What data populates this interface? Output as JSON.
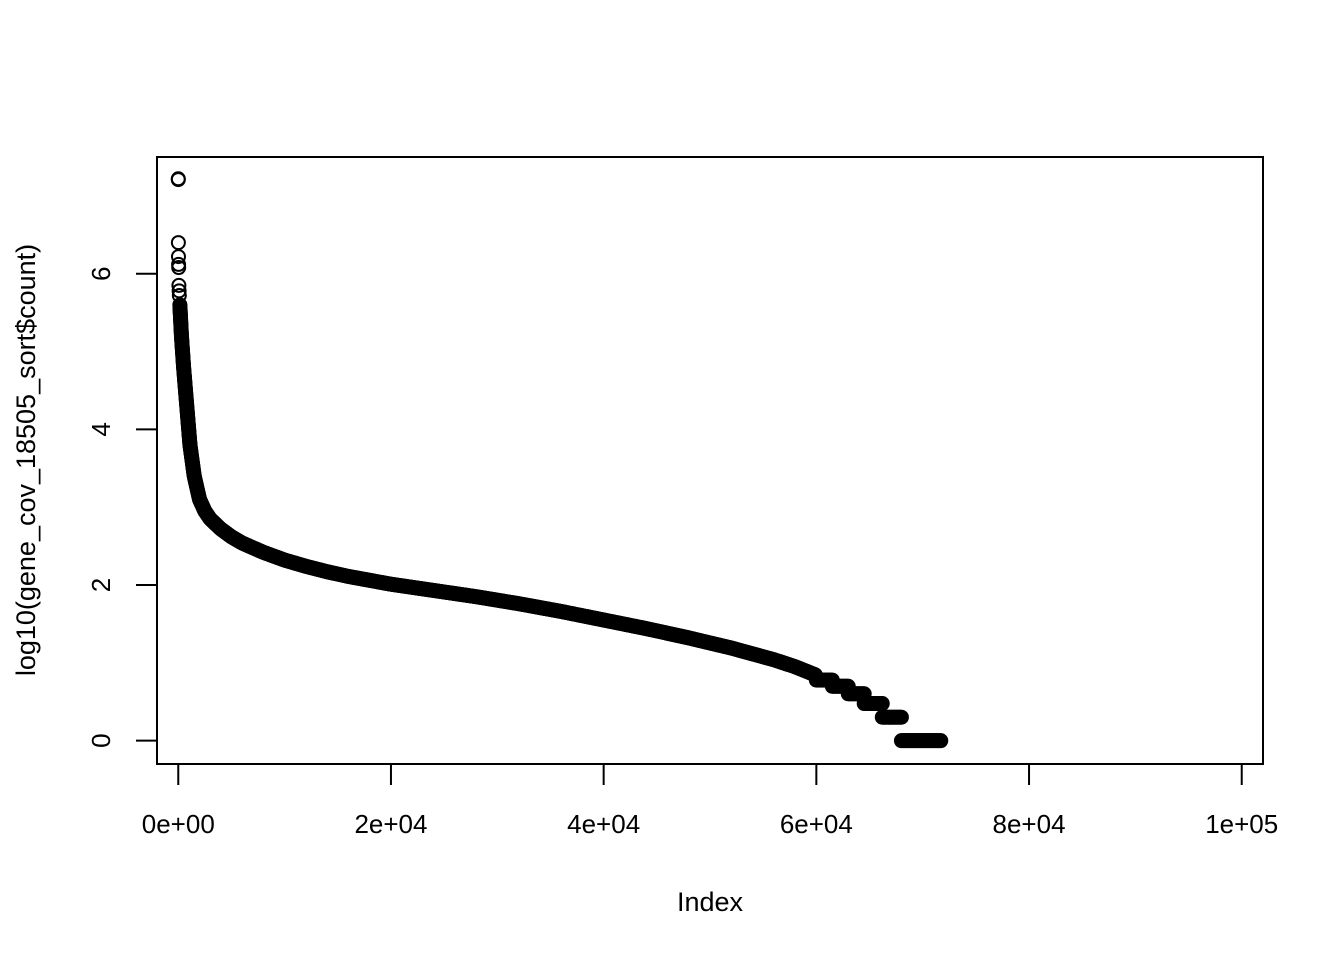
{
  "chart_data": {
    "type": "scatter",
    "title": "",
    "xlabel": "Index",
    "ylabel": "log10(gene_cov_18505_sort$count)",
    "xlim": [
      -2000,
      102000
    ],
    "ylim": [
      -0.3,
      7.5
    ],
    "x_ticks": [
      0,
      20000,
      40000,
      60000,
      80000,
      100000
    ],
    "x_tick_labels": [
      "0e+00",
      "2e+04",
      "4e+04",
      "6e+04",
      "8e+04",
      "1e+05"
    ],
    "y_ticks": [
      0,
      2,
      4,
      6
    ],
    "y_tick_labels": [
      "0",
      "2",
      "4",
      "6"
    ],
    "grid": false,
    "legend": "none",
    "marker": "open-circle",
    "color": "#000000",
    "n_points": 71800,
    "outliers": [
      {
        "x": 1,
        "y": 7.22
      },
      {
        "x": 2,
        "y": 7.21
      },
      {
        "x": 10,
        "y": 6.4
      },
      {
        "x": 20,
        "y": 6.22
      },
      {
        "x": 30,
        "y": 6.12
      },
      {
        "x": 40,
        "y": 6.08
      },
      {
        "x": 60,
        "y": 5.85
      },
      {
        "x": 80,
        "y": 5.78
      },
      {
        "x": 100,
        "y": 5.72
      }
    ],
    "curve": [
      {
        "x": 150,
        "y": 5.6
      },
      {
        "x": 300,
        "y": 5.2
      },
      {
        "x": 500,
        "y": 4.8
      },
      {
        "x": 800,
        "y": 4.3
      },
      {
        "x": 1100,
        "y": 3.8
      },
      {
        "x": 1500,
        "y": 3.4
      },
      {
        "x": 2000,
        "y": 3.1
      },
      {
        "x": 2500,
        "y": 2.95
      },
      {
        "x": 3000,
        "y": 2.85
      },
      {
        "x": 4000,
        "y": 2.72
      },
      {
        "x": 5000,
        "y": 2.62
      },
      {
        "x": 6000,
        "y": 2.54
      },
      {
        "x": 8000,
        "y": 2.42
      },
      {
        "x": 10000,
        "y": 2.32
      },
      {
        "x": 12000,
        "y": 2.24
      },
      {
        "x": 14000,
        "y": 2.17
      },
      {
        "x": 16000,
        "y": 2.11
      },
      {
        "x": 18000,
        "y": 2.06
      },
      {
        "x": 20000,
        "y": 2.01
      },
      {
        "x": 24000,
        "y": 1.93
      },
      {
        "x": 28000,
        "y": 1.85
      },
      {
        "x": 32000,
        "y": 1.76
      },
      {
        "x": 36000,
        "y": 1.66
      },
      {
        "x": 40000,
        "y": 1.55
      },
      {
        "x": 44000,
        "y": 1.44
      },
      {
        "x": 48000,
        "y": 1.32
      },
      {
        "x": 52000,
        "y": 1.19
      },
      {
        "x": 56000,
        "y": 1.04
      },
      {
        "x": 58000,
        "y": 0.95
      },
      {
        "x": 60000,
        "y": 0.84
      }
    ],
    "steps": [
      {
        "x_start": 60000,
        "x_end": 61500,
        "y": 0.778
      },
      {
        "x_start": 61500,
        "x_end": 63000,
        "y": 0.699
      },
      {
        "x_start": 63000,
        "x_end": 64500,
        "y": 0.602
      },
      {
        "x_start": 64500,
        "x_end": 66200,
        "y": 0.477
      },
      {
        "x_start": 66200,
        "x_end": 68000,
        "y": 0.301
      },
      {
        "x_start": 68000,
        "x_end": 71700,
        "y": 0.0
      }
    ]
  }
}
